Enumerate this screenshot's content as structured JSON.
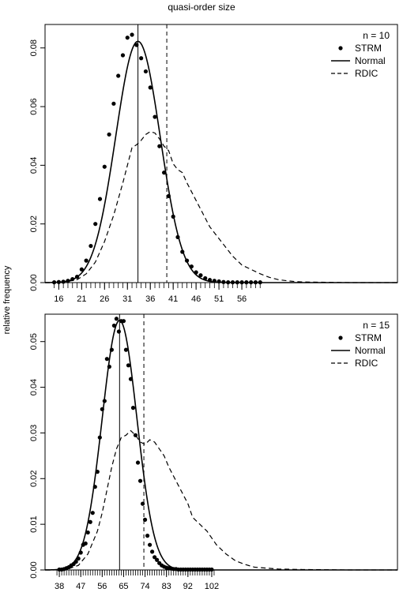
{
  "title": "quasi-order size",
  "ylabel": "relative frequency",
  "chart_data": [
    {
      "type": "line",
      "legend_title": "n = 10",
      "legend": [
        "STRM",
        "Normal",
        "RDIC"
      ],
      "legend_position": "top-right",
      "xlim": [
        13,
        90
      ],
      "ylim": [
        0,
        0.088
      ],
      "x_ticks": [
        "16",
        "21",
        "26",
        "31",
        "36",
        "41",
        "46",
        "51",
        "56"
      ],
      "y_ticks": [
        "0.00",
        "0.02",
        "0.04",
        "0.06",
        "0.08"
      ],
      "minor_tick_range": [
        15,
        60
      ],
      "vlines": [
        {
          "x": 33.3,
          "style": "solid"
        },
        {
          "x": 39.6,
          "style": "dashed"
        }
      ],
      "normal": {
        "mean": 33.3,
        "sd": 4.85
      },
      "strm": {
        "x": [
          15,
          16,
          17,
          18,
          19,
          20,
          21,
          22,
          23,
          24,
          25,
          26,
          27,
          28,
          29,
          30,
          31,
          32,
          33,
          34,
          35,
          36,
          37,
          38,
          39,
          40,
          41,
          42,
          43,
          44,
          45,
          46,
          47,
          48,
          49,
          50,
          51,
          52,
          53,
          54,
          55,
          56,
          57,
          58,
          59,
          60
        ],
        "y": [
          0.0001,
          0.0002,
          0.0003,
          0.0006,
          0.0012,
          0.002,
          0.0045,
          0.0075,
          0.0125,
          0.02,
          0.0285,
          0.0395,
          0.0505,
          0.061,
          0.0705,
          0.0775,
          0.0835,
          0.0845,
          0.081,
          0.0765,
          0.072,
          0.0665,
          0.0565,
          0.0465,
          0.0375,
          0.0295,
          0.0225,
          0.0155,
          0.0105,
          0.0075,
          0.0055,
          0.0035,
          0.0025,
          0.0015,
          0.0009,
          0.0006,
          0.0004,
          0.0002,
          0.0001,
          0.0001,
          0.0001,
          0.0001,
          0.0001,
          0.0001,
          0.0001,
          0.0001
        ]
      },
      "rdic": {
        "x": [
          15,
          18,
          20,
          22,
          24,
          26,
          28,
          30,
          31,
          32,
          33,
          34,
          35,
          36,
          37,
          38,
          39,
          40,
          41,
          42,
          43,
          44,
          45,
          46,
          47,
          48,
          49,
          50,
          51,
          52,
          54,
          56,
          58,
          60,
          62,
          64,
          66,
          68,
          70,
          75,
          80,
          85,
          90
        ],
        "y": [
          0,
          0.0004,
          0.001,
          0.003,
          0.007,
          0.014,
          0.023,
          0.034,
          0.04,
          0.046,
          0.047,
          0.0485,
          0.0505,
          0.0515,
          0.051,
          0.049,
          0.0465,
          0.045,
          0.0405,
          0.0385,
          0.0375,
          0.034,
          0.031,
          0.028,
          0.025,
          0.022,
          0.019,
          0.017,
          0.015,
          0.013,
          0.009,
          0.006,
          0.0045,
          0.003,
          0.0018,
          0.001,
          0.0006,
          0.0003,
          0.0002,
          0.0001,
          0,
          0,
          0
        ]
      }
    },
    {
      "type": "line",
      "legend_title": "n = 15",
      "legend": [
        "STRM",
        "Normal",
        "RDIC"
      ],
      "legend_position": "top-right",
      "xlim": [
        32,
        180
      ],
      "ylim": [
        0,
        0.056
      ],
      "x_ticks": [
        "38",
        "47",
        "56",
        "65",
        "74",
        "83",
        "92",
        "102"
      ],
      "y_ticks": [
        "0.00",
        "0.01",
        "0.02",
        "0.03",
        "0.04",
        "0.05"
      ],
      "minor_tick_range": [
        37,
        103
      ],
      "vlines": [
        {
          "x": 63.3,
          "style": "solid"
        },
        {
          "x": 73.5,
          "style": "dashed"
        }
      ],
      "normal": {
        "mean": 63.3,
        "sd": 7.3
      },
      "strm": {
        "x": [
          38,
          39,
          40,
          41,
          42,
          43,
          44,
          45,
          46,
          47,
          48,
          49,
          50,
          51,
          52,
          53,
          54,
          55,
          56,
          57,
          58,
          59,
          60,
          61,
          62,
          63,
          64,
          65,
          66,
          67,
          68,
          69,
          70,
          71,
          72,
          73,
          74,
          75,
          76,
          77,
          78,
          79,
          80,
          81,
          82,
          83,
          84,
          85,
          86,
          87,
          88,
          89,
          90,
          91,
          92,
          93,
          94,
          95,
          96,
          97,
          98,
          99,
          100,
          101,
          102
        ],
        "y": [
          0.0001,
          0.0001,
          0.0002,
          0.0004,
          0.0006,
          0.001,
          0.0013,
          0.0018,
          0.0025,
          0.0038,
          0.0055,
          0.0058,
          0.0082,
          0.0105,
          0.0125,
          0.0182,
          0.0215,
          0.029,
          0.0352,
          0.037,
          0.0462,
          0.0445,
          0.0482,
          0.0535,
          0.055,
          0.0522,
          0.0545,
          0.0545,
          0.0482,
          0.0448,
          0.0418,
          0.0355,
          0.0295,
          0.0235,
          0.0195,
          0.0145,
          0.011,
          0.0075,
          0.0055,
          0.004,
          0.0028,
          0.0022,
          0.0015,
          0.001,
          0.0007,
          0.0005,
          0.0004,
          0.0003,
          0.0002,
          0.0002,
          0.0001,
          0.0001,
          0.0001,
          0.0001,
          0.0001,
          0.0001,
          0.0001,
          0.0001,
          0.0001,
          0.0001,
          0.0001,
          0.0001,
          0.0001,
          0.0001,
          0.0001
        ]
      },
      "rdic": {
        "x": [
          38,
          42,
          46,
          50,
          54,
          56,
          58,
          60,
          62,
          64,
          66,
          68,
          70,
          72,
          74,
          76,
          78,
          80,
          82,
          84,
          86,
          88,
          90,
          92,
          94,
          96,
          98,
          100,
          104,
          108,
          112,
          116,
          120,
          130,
          140,
          160,
          180
        ],
        "y": [
          0,
          0.0003,
          0.001,
          0.0035,
          0.0085,
          0.0125,
          0.0175,
          0.0225,
          0.0265,
          0.029,
          0.0295,
          0.0305,
          0.0295,
          0.028,
          0.0275,
          0.0285,
          0.028,
          0.0265,
          0.025,
          0.0225,
          0.0205,
          0.0185,
          0.0165,
          0.0145,
          0.0115,
          0.0105,
          0.0095,
          0.0085,
          0.0055,
          0.0035,
          0.002,
          0.0012,
          0.0006,
          0.0002,
          0.0001,
          0,
          0
        ]
      }
    }
  ]
}
